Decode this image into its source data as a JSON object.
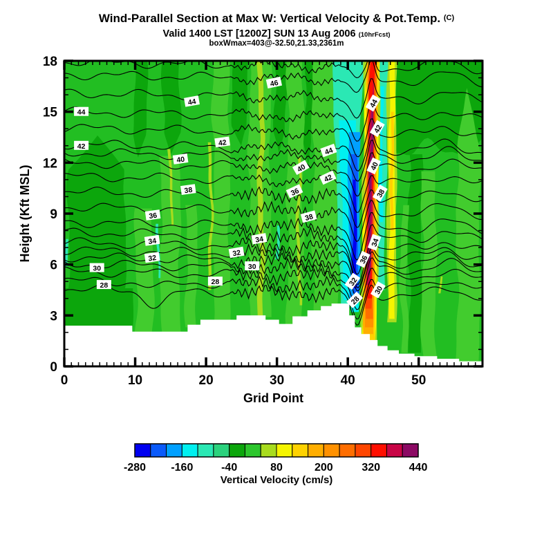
{
  "figure": {
    "title_main": "Wind-Parallel Section at Max W: Vertical Velocity & Pot.Temp.",
    "title_units": "(C)",
    "subtitle": "Valid 1400 LST [1200Z] SUN 13 Aug 2006",
    "subtitle_note": "(10hrFcst)",
    "info_line": "boxWmax=403@-32.50,21.33,2361m"
  },
  "chart_data": {
    "type": "heatmap",
    "variant": "vertical-cross-section-filled-contour",
    "title": "Wind-Parallel Section at Max W: Vertical Velocity & Pot.Temp. (C)",
    "xlabel": "Grid Point",
    "ylabel": "Height (Kft MSL)",
    "x_range": [
      0,
      59
    ],
    "y_range": [
      0,
      18
    ],
    "x_major_ticks": [
      0,
      10,
      20,
      30,
      40,
      50
    ],
    "x_minor_step": 1,
    "y_major_ticks": [
      0,
      3,
      6,
      9,
      12,
      15,
      18
    ],
    "y_minor_step": 1,
    "shaded_field": "Vertical Velocity (cm/s)",
    "contoured_field": "Potential Temperature (C)",
    "max_updraft_annotation": "boxWmax=403@-32.50,21.33,2361m",
    "colorbar": {
      "label": "Vertical Velocity (cm/s)",
      "min": -280,
      "max": 440,
      "step": 40,
      "tick_labels": [
        "-280",
        "-160",
        "-40",
        "80",
        "200",
        "320",
        "440"
      ],
      "colors": [
        "#0000F0",
        "#0A5AFA",
        "#00A0FF",
        "#00F0F0",
        "#2BE8B4",
        "#2BD27D",
        "#0CA60C",
        "#2DC62D",
        "#A8DC1E",
        "#F5F500",
        "#FFD200",
        "#FFAE00",
        "#FF9100",
        "#FF6E00",
        "#FF4600",
        "#FF0F00",
        "#C80546",
        "#8C0A64"
      ]
    },
    "isentrope_levels_C": [
      28,
      29,
      30,
      31,
      32,
      33,
      34,
      35,
      36,
      37,
      38,
      39,
      40,
      41,
      42,
      43,
      44,
      45,
      46,
      47
    ],
    "isentrope_base_height_kft": {
      "28": 4.55,
      "29": 5.05,
      "30": 5.6,
      "31": 6.05,
      "32": 6.45,
      "33": 6.85,
      "34": 7.3,
      "35": 7.9,
      "36": 8.5,
      "37": 9.4,
      "38": 10.3,
      "39": 11.2,
      "40": 12.0,
      "41": 12.6,
      "42": 13.1,
      "43": 14.05,
      "44": 15.0,
      "45": 16.1,
      "46": 17.2,
      "47": 17.95
    },
    "wave_structure": {
      "downdraft_center_grid": 41.35,
      "updraft_center_grid": 43.35,
      "dip_depth_kft": 1.9,
      "ridge_height_kft": 1.05,
      "right_hill_grid": 54
    },
    "contour_labels": [
      {
        "v": 44,
        "g": 2.4,
        "h": 15.0,
        "r": 0
      },
      {
        "v": 42,
        "g": 2.4,
        "h": 13.0,
        "r": 0
      },
      {
        "v": 30,
        "g": 4.6,
        "h": 5.8,
        "r": 0
      },
      {
        "v": 28,
        "g": 5.6,
        "h": 4.8,
        "r": 0
      },
      {
        "v": 36,
        "g": 12.5,
        "h": 8.9,
        "r": -8
      },
      {
        "v": 34,
        "g": 12.4,
        "h": 7.4,
        "r": -8
      },
      {
        "v": 32,
        "g": 12.4,
        "h": 6.4,
        "r": -8
      },
      {
        "v": 40,
        "g": 16.4,
        "h": 12.2,
        "r": -8
      },
      {
        "v": 38,
        "g": 17.5,
        "h": 10.4,
        "r": -8
      },
      {
        "v": 44,
        "g": 18.0,
        "h": 15.6,
        "r": -10
      },
      {
        "v": 42,
        "g": 22.3,
        "h": 13.2,
        "r": -8
      },
      {
        "v": 28,
        "g": 21.3,
        "h": 5.0,
        "r": 0
      },
      {
        "v": 30,
        "g": 26.5,
        "h": 5.9,
        "r": 0
      },
      {
        "v": 32,
        "g": 24.3,
        "h": 6.7,
        "r": -10
      },
      {
        "v": 34,
        "g": 27.5,
        "h": 7.5,
        "r": -10
      },
      {
        "v": 46,
        "g": 29.6,
        "h": 16.7,
        "r": -12
      },
      {
        "v": 36,
        "g": 32.5,
        "h": 10.3,
        "r": -25
      },
      {
        "v": 38,
        "g": 34.5,
        "h": 8.8,
        "r": -15
      },
      {
        "v": 40,
        "g": 33.4,
        "h": 11.7,
        "r": -30
      },
      {
        "v": 42,
        "g": 37.2,
        "h": 11.1,
        "r": -25
      },
      {
        "v": 44,
        "g": 37.3,
        "h": 12.7,
        "r": -20
      },
      {
        "v": 44,
        "g": 43.6,
        "h": 15.5,
        "r": -60
      },
      {
        "v": 42,
        "g": 44.2,
        "h": 14.0,
        "r": -60
      },
      {
        "v": 40,
        "g": 43.7,
        "h": 11.8,
        "r": -65
      },
      {
        "v": 38,
        "g": 44.6,
        "h": 10.2,
        "r": -60
      },
      {
        "v": 34,
        "g": 43.8,
        "h": 7.3,
        "r": -70
      },
      {
        "v": 36,
        "g": 42.2,
        "h": 6.3,
        "r": -65
      },
      {
        "v": 32,
        "g": 40.7,
        "h": 5.0,
        "r": -55
      },
      {
        "v": 30,
        "g": 44.3,
        "h": 4.5,
        "r": -60
      },
      {
        "v": 28,
        "g": 41.0,
        "h": 3.9,
        "r": -45
      }
    ],
    "terrain_profile_kft": [
      [
        0,
        2.4
      ],
      [
        9.6,
        2.4
      ],
      [
        9.6,
        2.05
      ],
      [
        17.4,
        2.05
      ],
      [
        17.4,
        2.45
      ],
      [
        19.2,
        2.45
      ],
      [
        19.2,
        2.75
      ],
      [
        24.3,
        2.75
      ],
      [
        24.3,
        3.0
      ],
      [
        28.4,
        3.0
      ],
      [
        28.4,
        2.75
      ],
      [
        30.3,
        2.75
      ],
      [
        30.3,
        2.5
      ],
      [
        32.2,
        2.5
      ],
      [
        32.2,
        2.95
      ],
      [
        34.3,
        2.95
      ],
      [
        34.3,
        3.3
      ],
      [
        36.2,
        3.3
      ],
      [
        36.2,
        3.55
      ],
      [
        37.7,
        3.55
      ],
      [
        37.7,
        3.7
      ],
      [
        40.2,
        3.7
      ],
      [
        40.2,
        3.0
      ],
      [
        41.0,
        3.0
      ],
      [
        41.0,
        2.3
      ],
      [
        41.9,
        2.3
      ],
      [
        41.9,
        1.9
      ],
      [
        43.1,
        1.9
      ],
      [
        43.1,
        1.55
      ],
      [
        44.2,
        1.55
      ],
      [
        44.2,
        1.2
      ],
      [
        45.6,
        1.2
      ],
      [
        45.6,
        0.95
      ],
      [
        47.2,
        0.95
      ],
      [
        47.2,
        0.75
      ],
      [
        49.4,
        0.75
      ],
      [
        49.4,
        0.6
      ],
      [
        52.6,
        0.6
      ],
      [
        52.6,
        0.45
      ],
      [
        55.7,
        0.45
      ],
      [
        55.7,
        0.3
      ],
      [
        59,
        0.3
      ]
    ],
    "field_base_color": "#22BE22",
    "field_stripes": [
      {
        "kind": "weak-downdraft",
        "color": "#0CA60C",
        "gB": [
          0.6,
          8.6
        ],
        "y": [
          4.3,
          13.6
        ],
        "point": "top",
        "seed": 1
      },
      {
        "kind": "weak-downdraft",
        "color": "#0CA60C",
        "gB": [
          0,
          9.6
        ],
        "y": [
          2.0,
          4.6
        ],
        "seed": 2
      },
      {
        "kind": "weak-downdraft",
        "color": "#0CA60C",
        "gB": [
          9.8,
          11.6
        ],
        "y": [
          12.3,
          18.4
        ],
        "point": "bottom",
        "seed": 3
      },
      {
        "kind": "weak-downdraft",
        "color": "#0CA60C",
        "gB": [
          13.9,
          16.3
        ],
        "y": [
          12.5,
          18.4
        ],
        "point": "bottom",
        "seed": 4
      },
      {
        "kind": "weak-downdraft",
        "color": "#0CA60C",
        "gB": [
          23.8,
          25.9
        ],
        "y": [
          13.0,
          18.4
        ],
        "point": "bottom",
        "seed": 5
      },
      {
        "kind": "weak-downdraft",
        "color": "#0CA60C",
        "gB": [
          29.6,
          31.2
        ],
        "y": [
          12.6,
          18.4
        ],
        "point": "bottom",
        "seed": 6
      },
      {
        "kind": "weak-downdraft",
        "color": "#0CA60C",
        "gB": [
          33.9,
          35.0
        ],
        "y": [
          11.8,
          18.4
        ],
        "point": "bottom",
        "seed": 9
      },
      {
        "kind": "weak-downdraft",
        "color": "#0CA60C",
        "band": true,
        "gB": [
          46.8,
          59.3
        ],
        "y": [
          12.8,
          18.4
        ],
        "seed": 7
      },
      {
        "kind": "weak-downdraft",
        "color": "#0CA60C",
        "gB": [
          48.6,
          50.4
        ],
        "y": [
          0.8,
          12.5
        ],
        "seed": 8
      },
      {
        "kind": "weak-updraft",
        "color": "#42CC2E",
        "gB": [
          10.1,
          12.5
        ],
        "y": [
          2.0,
          9.3
        ],
        "seed": 11
      },
      {
        "kind": "weak-updraft",
        "color": "#42CC2E",
        "gB": [
          13.6,
          16.3
        ],
        "y": [
          2.0,
          12.4
        ],
        "seed": 12
      },
      {
        "kind": "weak-updraft",
        "color": "#42CC2E",
        "gB": [
          17.2,
          18.7
        ],
        "y": [
          2.3,
          9.5
        ],
        "seed": 13
      },
      {
        "kind": "weak-updraft",
        "color": "#42CC2E",
        "gB": [
          21.0,
          23.3
        ],
        "y": [
          2.6,
          18.4
        ],
        "seed": 14
      },
      {
        "kind": "weak-updraft",
        "color": "#42CC2E",
        "gB": [
          26.1,
          29.1
        ],
        "y": [
          2.9,
          18.4
        ],
        "seed": 15
      },
      {
        "kind": "weak-updraft",
        "color": "#42CC2E",
        "gB": [
          31.5,
          33.7
        ],
        "y": [
          2.4,
          18.4
        ],
        "seed": 16
      },
      {
        "kind": "weak-updraft",
        "color": "#42CC2E",
        "gB": [
          35.1,
          38.5
        ],
        "y": [
          3.2,
          18.4
        ],
        "seed": 17
      },
      {
        "kind": "weak-updraft",
        "color": "#42CC2E",
        "gB": [
          47.5,
          48.4
        ],
        "y": [
          0.8,
          9.5
        ],
        "seed": 18
      },
      {
        "kind": "weak-updraft",
        "color": "#42CC2E",
        "gB": [
          50.5,
          52.4
        ],
        "y": [
          0.6,
          11.5
        ],
        "seed": 19
      },
      {
        "kind": "weak-updraft",
        "color": "#42CC2E",
        "gB": [
          55.4,
          58.6
        ],
        "y": [
          0.3,
          16.4
        ],
        "point": "top",
        "seed": 20
      },
      {
        "kind": "updraft-streak",
        "color": "#A8DC1E",
        "gB": [
          20.45,
          20.85
        ],
        "y": [
          4.5,
          13.2
        ],
        "seed": 21
      },
      {
        "kind": "updraft-streak",
        "color": "#A8DC1E",
        "gB": [
          27.4,
          28.1
        ],
        "y": [
          2.9,
          18.4
        ],
        "seed": 22
      },
      {
        "kind": "updraft-streak",
        "color": "#A8DC1E",
        "gB": [
          32.9,
          33.3
        ],
        "y": [
          3.6,
          12.3
        ],
        "seed": 23
      },
      {
        "kind": "updraft-streak",
        "color": "#A8DC1E",
        "gB": [
          14.85,
          15.2
        ],
        "y": [
          8.3,
          12.8
        ],
        "seed": 24
      },
      {
        "kind": "updraft-streak",
        "color": "#A8DC1E",
        "gB": [
          52.9,
          53.2
        ],
        "y": [
          4.3,
          5.3
        ],
        "seed": 25
      },
      {
        "kind": "downdraft-streak",
        "color": "#2BE8B4",
        "gB": [
          13.2,
          13.5
        ],
        "y": [
          5.2,
          8.4
        ],
        "seed": 26
      },
      {
        "kind": "downdraft-streak",
        "color": "#2BE8B4",
        "gB": [
          29.9,
          30.3
        ],
        "y": [
          6.3,
          8.3
        ],
        "seed": 27
      },
      {
        "kind": "downdraft-streak",
        "color": "#2BE8B4",
        "gB": [
          0.0,
          0.4
        ],
        "y": [
          5.9,
          7.5
        ],
        "seed": 28
      },
      {
        "kind": "downdraft-band",
        "color": "#2BE8B4",
        "gB": [
          39.0,
          40.3
        ],
        "gT": [
          37.8,
          42.4
        ],
        "y": [
          3.5,
          18.4
        ],
        "seed": 29,
        "calm": true
      },
      {
        "kind": "downdraft-band",
        "color": "#00F0F0",
        "gB": [
          39.5,
          40.45
        ],
        "gT": [
          38.8,
          41.2
        ],
        "y": [
          3.9,
          14.5
        ],
        "seed": 30,
        "calm": true
      },
      {
        "kind": "downdraft-band",
        "color": "#00F0F0",
        "gB": [
          40.5,
          41.6
        ],
        "y": [
          3.2,
          4.4
        ],
        "seed": 31,
        "calm": true
      },
      {
        "kind": "downdraft-band",
        "color": "#2BE8B4",
        "gB": [
          44.15,
          45.1
        ],
        "gT": [
          43.8,
          45.75
        ],
        "y": [
          4.5,
          18.4
        ],
        "seed": 32,
        "calm": true
      },
      {
        "kind": "downdraft-band",
        "color": "#00F0F0",
        "gB": [
          44.3,
          44.85
        ],
        "gT": [
          44.1,
          45.0
        ],
        "y": [
          8.5,
          16.5
        ],
        "seed": 33,
        "calm": true
      },
      {
        "kind": "downdraft-core",
        "color": "#00A0FF",
        "gB": [
          40.3,
          41.7
        ],
        "gT": [
          40.0,
          41.65
        ],
        "y": [
          4.0,
          13.8
        ],
        "seed": 34,
        "calm": true
      },
      {
        "kind": "downdraft-core",
        "color": "#0A5AFA",
        "gB": [
          40.55,
          41.5
        ],
        "gT": [
          40.4,
          41.3
        ],
        "y": [
          4.3,
          12.5
        ],
        "seed": 35,
        "calm": true
      },
      {
        "kind": "downdraft-core",
        "color": "#0000F0",
        "gB": [
          40.75,
          41.3
        ],
        "gT": [
          40.7,
          41.1
        ],
        "y": [
          4.6,
          11.0
        ],
        "seed": 36,
        "calm": true
      },
      {
        "kind": "updraft-core",
        "color": "#A8DC1E",
        "gB": [
          41.8,
          44.1
        ],
        "gT": [
          42.35,
          44.65
        ],
        "y": [
          1.2,
          18.4
        ],
        "seed": 37,
        "calm": true
      },
      {
        "kind": "updraft-core",
        "color": "#F5F500",
        "gB": [
          42.0,
          43.9
        ],
        "gT": [
          42.55,
          44.45
        ],
        "y": [
          1.25,
          18.4
        ],
        "seed": 38,
        "calm": true
      },
      {
        "kind": "updraft-core",
        "color": "#FFD200",
        "gB": [
          42.14,
          43.76
        ],
        "gT": [
          42.69,
          44.31
        ],
        "y": [
          1.5,
          18.4
        ],
        "seed": 39,
        "calm": true
      },
      {
        "kind": "updraft-core",
        "color": "#FFAE00",
        "gB": [
          42.25,
          43.65
        ],
        "gT": [
          42.8,
          44.2
        ],
        "y": [
          1.9,
          18.4
        ],
        "seed": 40,
        "calm": true
      },
      {
        "kind": "updraft-core",
        "color": "#FF9100",
        "gB": [
          42.35,
          43.55
        ],
        "gT": [
          42.9,
          44.1
        ],
        "y": [
          2.3,
          18.4
        ],
        "seed": 41,
        "calm": true
      },
      {
        "kind": "updraft-core",
        "color": "#FF6E00",
        "gB": [
          42.44,
          43.46
        ],
        "gT": [
          42.99,
          44.01
        ],
        "y": [
          2.8,
          18.4
        ],
        "seed": 42,
        "calm": true
      },
      {
        "kind": "updraft-core",
        "color": "#FF4600",
        "gB": [
          42.52,
          43.38
        ],
        "gT": [
          43.07,
          43.93
        ],
        "y": [
          3.4,
          18.4
        ],
        "seed": 43,
        "calm": true
      },
      {
        "kind": "updraft-core",
        "color": "#FF0F00",
        "gB": [
          42.6,
          43.3
        ],
        "gT": [
          43.15,
          43.85
        ],
        "y": [
          4.0,
          18.4
        ],
        "seed": 44,
        "calm": true
      },
      {
        "kind": "updraft-core",
        "color": "#C80546",
        "gB": [
          42.69,
          43.21
        ],
        "gT": [
          43.24,
          43.76
        ],
        "y": [
          4.8,
          17.2
        ],
        "seed": 45,
        "calm": true,
        "point": "top"
      },
      {
        "kind": "updraft-core",
        "color": "#8C0A64",
        "gB": [
          42.77,
          43.13
        ],
        "gT": [
          43.32,
          43.68
        ],
        "y": [
          5.4,
          16.2
        ],
        "seed": 46,
        "calm": true,
        "point": "top"
      },
      {
        "kind": "updraft-band",
        "color": "#A8DC1E",
        "gB": [
          45.55,
          46.85
        ],
        "y": [
          2.6,
          18.4
        ],
        "seed": 47,
        "calm": true
      },
      {
        "kind": "updraft-band",
        "color": "#F5F500",
        "gB": [
          45.85,
          46.6
        ],
        "y": [
          2.8,
          18.4
        ],
        "seed": 48,
        "calm": true
      },
      {
        "kind": "updraft-band",
        "color": "#FFD200",
        "gB": [
          46.05,
          46.45
        ],
        "y": [
          8.0,
          15.0
        ],
        "seed": 49,
        "calm": true
      }
    ]
  }
}
